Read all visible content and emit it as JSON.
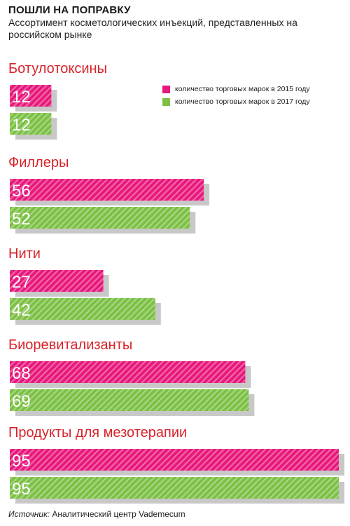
{
  "header": {
    "title": "ПОШЛИ НА ПОПРАВКУ",
    "subtitle": "Ассортимент косметологических инъекций, представленных на российском рынке"
  },
  "colors": {
    "series_2015": "#e8177b",
    "series_2017": "#7bc043",
    "category_text": "#d8232a",
    "shadow": "#c8c8c8"
  },
  "chart_data": {
    "type": "bar",
    "orientation": "horizontal",
    "title": "ПОШЛИ НА ПОПРАВКУ",
    "subtitle": "Ассортимент косметологических инъекций, представленных на российском рынке",
    "categories": [
      "Ботулотоксины",
      "Филлеры",
      "Нити",
      "Биоревитализанты",
      "Продукты для мезотерапии"
    ],
    "series": [
      {
        "name": "количество торговых марок в 2015 году",
        "values": [
          12,
          56,
          27,
          68,
          95
        ]
      },
      {
        "name": "количество торговых марок в 2017 году",
        "values": [
          12,
          52,
          42,
          69,
          95
        ]
      }
    ],
    "xlim": [
      0,
      95
    ],
    "grid": false,
    "legend_position": "top-right"
  },
  "source": {
    "label": "Источник:",
    "text": "Аналитический центр Vademecum"
  }
}
